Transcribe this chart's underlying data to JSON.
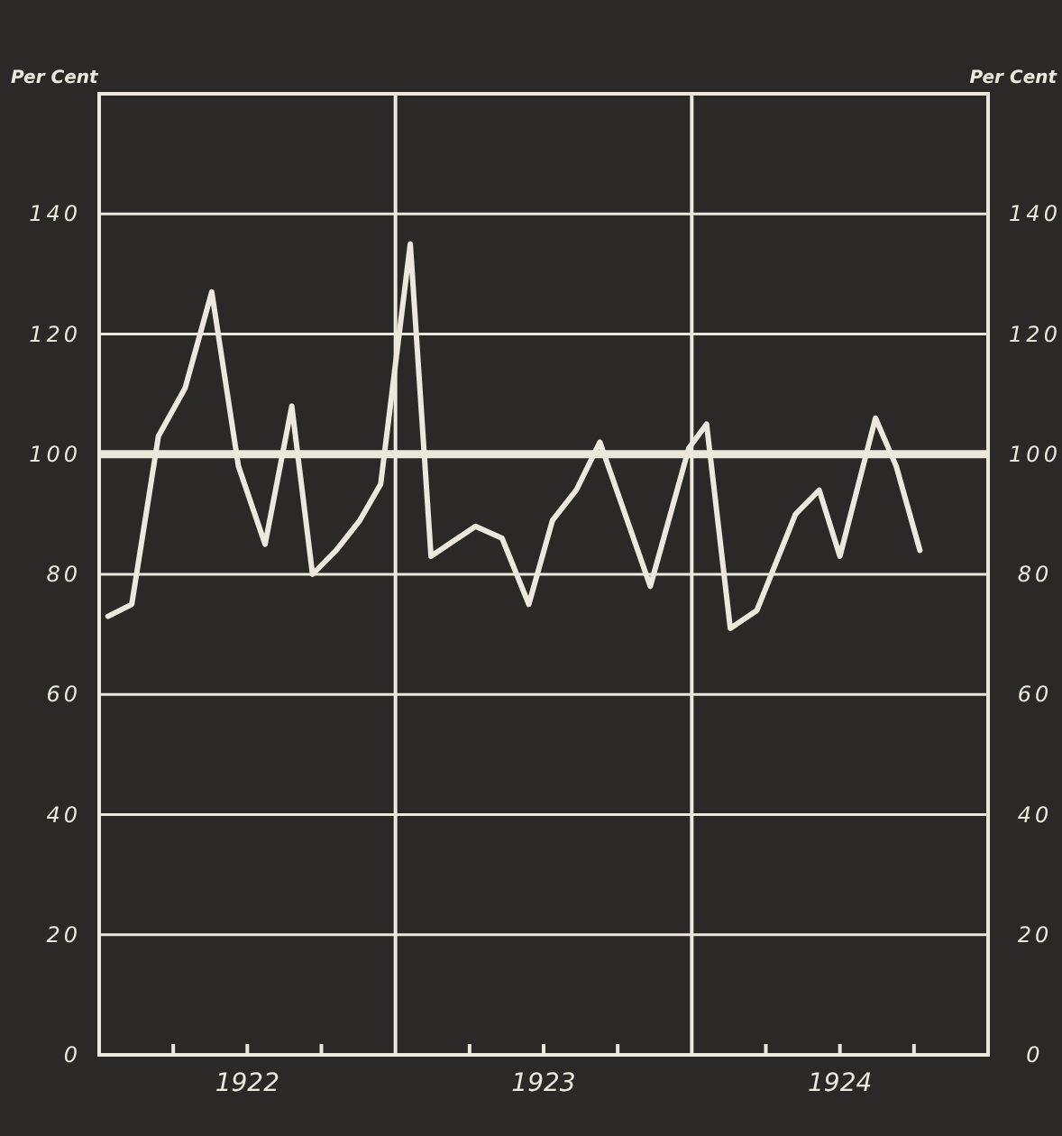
{
  "chart_data": {
    "type": "line",
    "ylabel": "Per Cent",
    "y2label": "Per Cent",
    "x": [
      1922.03,
      1922.11,
      1922.2,
      1922.29,
      1922.38,
      1922.47,
      1922.56,
      1922.65,
      1922.72,
      1922.8,
      1922.88,
      1922.95,
      1923.05,
      1923.12,
      1923.27,
      1923.36,
      1923.45,
      1923.53,
      1923.61,
      1923.69,
      1923.86,
      1923.99,
      1924.05,
      1924.13,
      1924.22,
      1924.35,
      1924.43,
      1924.5,
      1924.62,
      1924.69,
      1924.77
    ],
    "series": [
      {
        "color": "#ece8dc",
        "values": [
          73,
          75,
          103,
          111,
          127,
          98,
          85,
          108,
          80,
          84,
          89,
          95,
          135,
          83,
          88,
          86,
          75,
          89,
          94,
          102,
          78,
          101,
          105,
          71,
          74,
          90,
          94,
          83,
          106,
          98,
          84
        ]
      }
    ],
    "xlim": [
      1922,
      1925
    ],
    "xticks": [
      {
        "value": 1922.25,
        "label": null
      },
      {
        "value": 1922.5,
        "label": "1922"
      },
      {
        "value": 1922.75,
        "label": null
      },
      {
        "value": 1923.25,
        "label": null
      },
      {
        "value": 1923.5,
        "label": "1923"
      },
      {
        "value": 1923.75,
        "label": null
      },
      {
        "value": 1924.25,
        "label": null
      },
      {
        "value": 1924.5,
        "label": "1924"
      },
      {
        "value": 1924.75,
        "label": null
      }
    ],
    "ylim": [
      0,
      160
    ],
    "yticks": [
      0,
      20,
      40,
      60,
      80,
      100,
      120,
      140
    ],
    "y2lim": [
      0,
      160
    ],
    "y2ticks": [
      0,
      20,
      40,
      60,
      80,
      100,
      120,
      140
    ],
    "grid": "y",
    "marker": "none",
    "line_style": "solid",
    "ref_lines": [
      {
        "axis": "y",
        "value": 100,
        "label": null
      },
      {
        "axis": "x",
        "value": 1923,
        "label": null
      },
      {
        "axis": "x",
        "value": 1924,
        "label": null
      }
    ]
  }
}
